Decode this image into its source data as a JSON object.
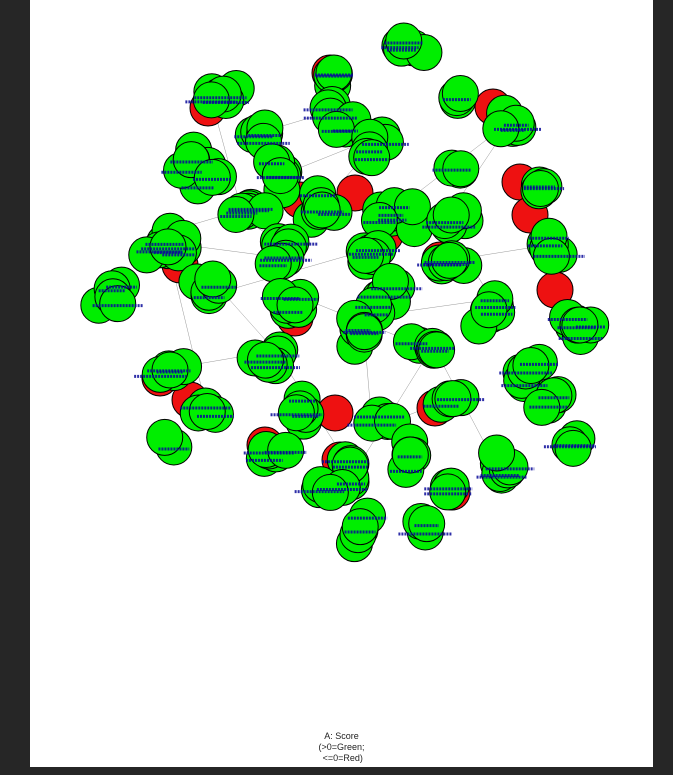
{
  "legend": {
    "title": "A: Score",
    "line1": "(>0=Green;",
    "line2": " <=0=Red)"
  },
  "colors": {
    "positive": "#00ee00",
    "nonpositive": "#ee1111",
    "label": "#0a0a9a",
    "edge": "#999999",
    "viewer_bg": "#262626",
    "page_bg": "#ffffff"
  },
  "node_label_prefix": "u"
}
